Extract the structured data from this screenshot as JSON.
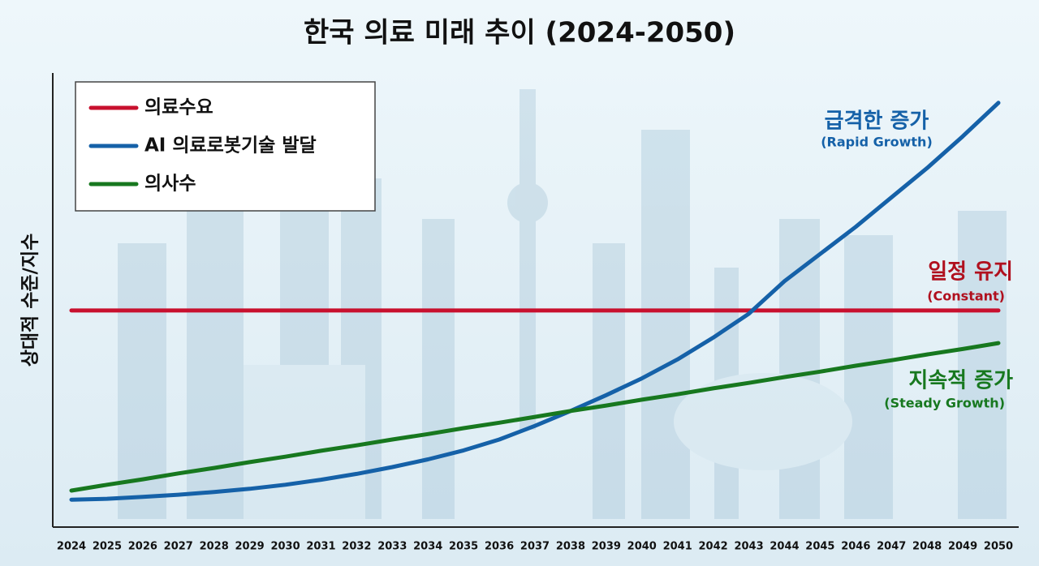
{
  "chart_data": {
    "type": "line",
    "title": "한국 의료 미래 추이 (2024-2050)",
    "y_label": "상대적 수준/지수",
    "categories": [
      "2024",
      "2025",
      "2026",
      "2027",
      "2028",
      "2029",
      "2030",
      "2031",
      "2032",
      "2033",
      "2034",
      "2035",
      "2036",
      "2037",
      "2038",
      "2039",
      "2040",
      "2041",
      "2042",
      "2043",
      "2044",
      "2045",
      "2046",
      "2047",
      "2048",
      "2049",
      "2050"
    ],
    "ylim": [
      0,
      100
    ],
    "legend": "top-left",
    "series": [
      {
        "name": "의료수요",
        "color": "#c8102e",
        "values": [
          47.5,
          47.5,
          47.5,
          47.5,
          47.5,
          47.5,
          47.5,
          47.5,
          47.5,
          47.5,
          47.5,
          47.5,
          47.5,
          47.5,
          47.5,
          47.5,
          47.5,
          47.5,
          47.5,
          47.5,
          47.5,
          47.5,
          47.5,
          47.5,
          47.5,
          47.5,
          47.5
        ]
      },
      {
        "name": "AI 의료로봇기술 발달",
        "color": "#1561a8",
        "values": [
          5.7,
          5.9,
          6.3,
          6.8,
          7.4,
          8.1,
          9.0,
          10.1,
          11.4,
          12.9,
          14.6,
          16.6,
          19.0,
          22.0,
          25.3,
          28.8,
          32.5,
          36.7,
          41.5,
          46.8,
          54.0,
          60.0,
          66.0,
          72.5,
          79.0,
          86.0,
          93.4
        ]
      },
      {
        "name": "의사수",
        "color": "#17781f",
        "values": [
          7.7,
          9.0,
          10.2,
          11.5,
          12.7,
          14.0,
          15.2,
          16.5,
          17.7,
          19.0,
          20.2,
          21.5,
          22.7,
          24.0,
          25.3,
          26.5,
          27.8,
          29.0,
          30.3,
          31.5,
          32.8,
          34.0,
          35.3,
          36.5,
          37.8,
          39.0,
          40.3
        ]
      }
    ],
    "annotations": [
      {
        "text": "급격한 증가",
        "subtext": "(Rapid Growth)",
        "color": "#1561a8"
      },
      {
        "text": "일정 유지",
        "subtext": "(Constant)",
        "color": "#b0101e"
      },
      {
        "text": "지속적 증가",
        "subtext": "(Steady Growth)",
        "color": "#17781f"
      }
    ]
  }
}
